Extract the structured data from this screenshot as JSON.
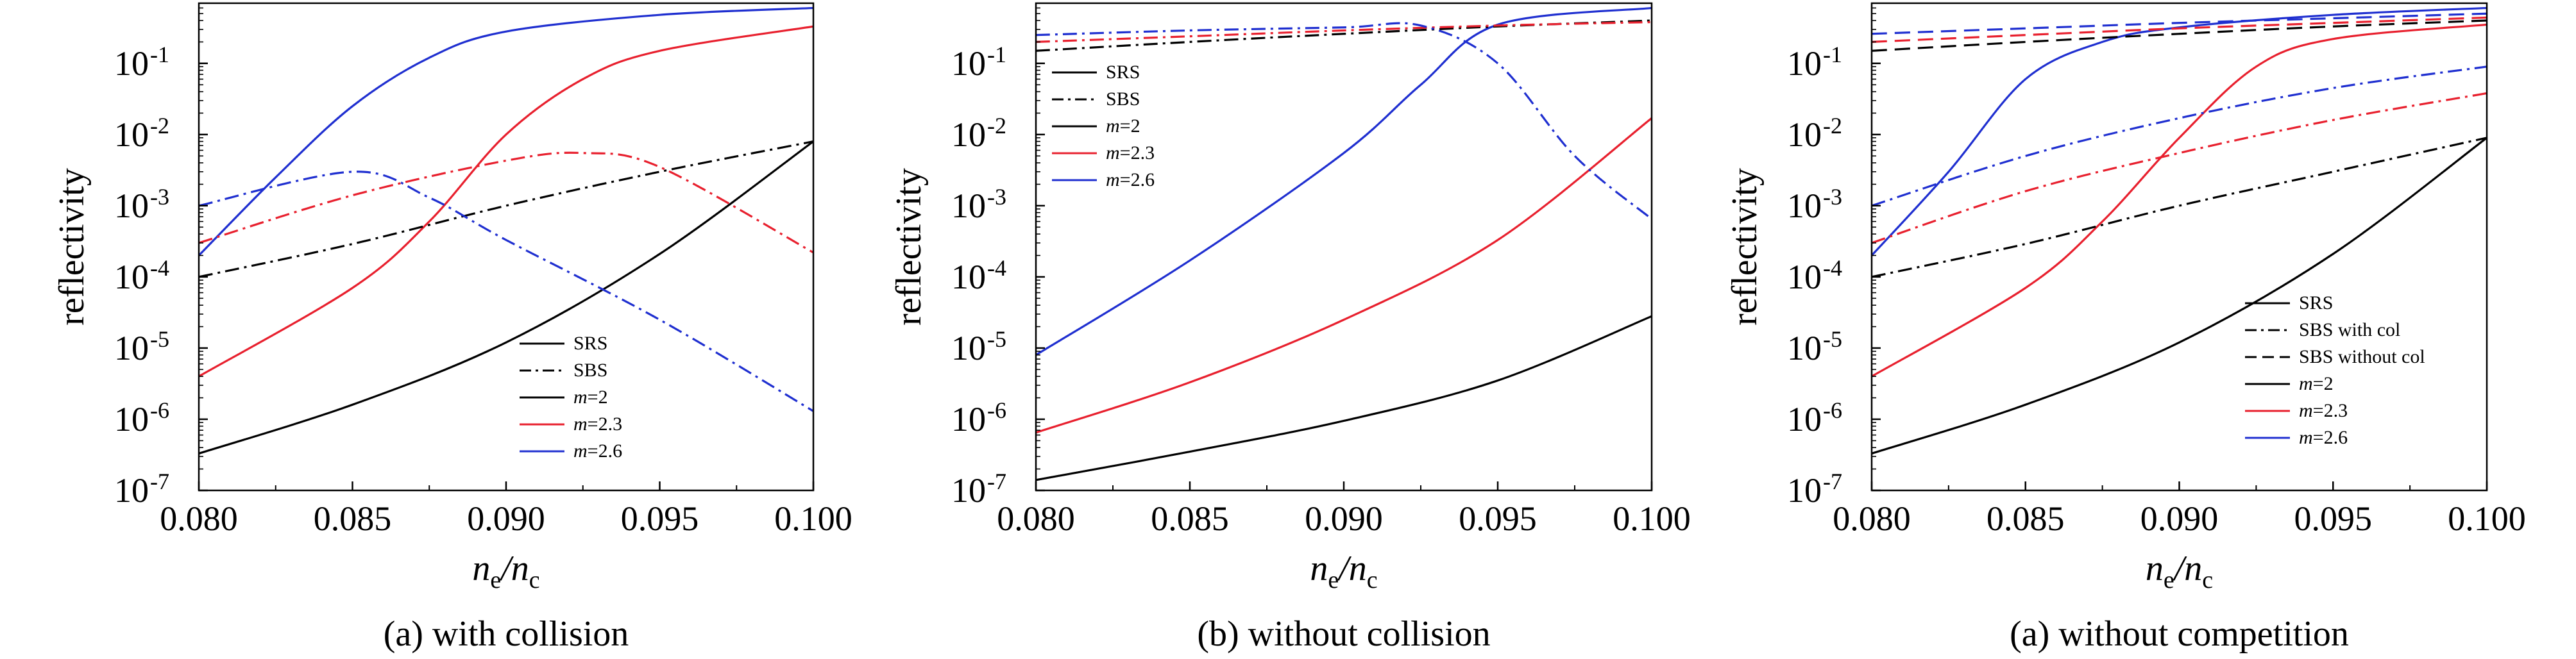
{
  "chart_data": [
    {
      "type": "line",
      "caption": "(a) with collision",
      "xlabel_main": "n",
      "xlabel_sub1": "e",
      "xlabel_slash": "/n",
      "xlabel_sub2": "c",
      "ylabel": "reflectivity",
      "xlim": [
        0.08,
        0.1
      ],
      "ylim": [
        1e-07,
        0.7
      ],
      "yscale": "log",
      "x_ticks": [
        "0.080",
        "0.085",
        "0.090",
        "0.095",
        "0.100"
      ],
      "y_ticks": [
        {
          "base": "10",
          "exp": "-7"
        },
        {
          "base": "10",
          "exp": "-6"
        },
        {
          "base": "10",
          "exp": "-5"
        },
        {
          "base": "10",
          "exp": "-4"
        },
        {
          "base": "10",
          "exp": "-3"
        },
        {
          "base": "10",
          "exp": "-2"
        },
        {
          "base": "10",
          "exp": "-1"
        }
      ],
      "legend_position": "bottom-right",
      "legend": [
        {
          "label": "SRS",
          "color": "#000000",
          "dash": "solid"
        },
        {
          "label": "SBS",
          "color": "#000000",
          "dash": "dashdot"
        },
        {
          "label": "=2",
          "label_prefix": "m",
          "color": "#000000",
          "dash": "solid"
        },
        {
          "label": "=2.3",
          "label_prefix": "m",
          "color": "#e8202e",
          "dash": "solid"
        },
        {
          "label": "=2.6",
          "label_prefix": "m",
          "color": "#1f2fd0",
          "dash": "solid"
        }
      ],
      "series": [
        {
          "process": "SRS",
          "m": "2",
          "color": "#000000",
          "dash": "solid",
          "x": [
            0.08,
            0.085,
            0.09,
            0.095,
            0.1
          ],
          "y": [
            3.3e-07,
            1.6e-06,
            1.2e-05,
            0.00021,
            0.008
          ]
        },
        {
          "process": "SRS",
          "m": "2.3",
          "color": "#e8202e",
          "dash": "solid",
          "x": [
            0.08,
            0.085,
            0.0875,
            0.09,
            0.0925,
            0.095,
            0.1
          ],
          "y": [
            4e-06,
            7e-05,
            0.0006,
            0.01,
            0.06,
            0.15,
            0.33
          ]
        },
        {
          "process": "SRS",
          "m": "2.6",
          "color": "#1f2fd0",
          "dash": "solid",
          "x": [
            0.08,
            0.0825,
            0.085,
            0.0875,
            0.09,
            0.095,
            0.1
          ],
          "y": [
            0.0002,
            0.0025,
            0.025,
            0.12,
            0.28,
            0.48,
            0.6
          ]
        },
        {
          "process": "SBS",
          "m": "2",
          "color": "#000000",
          "dash": "dashdot",
          "x": [
            0.08,
            0.085,
            0.09,
            0.095,
            0.1
          ],
          "y": [
            0.0001,
            0.00029,
            0.001,
            0.003,
            0.008
          ]
        },
        {
          "process": "SBS",
          "m": "2.3",
          "color": "#e8202e",
          "dash": "dashdot",
          "x": [
            0.08,
            0.085,
            0.09,
            0.0925,
            0.095,
            0.1
          ],
          "y": [
            0.0003,
            0.0014,
            0.0043,
            0.0055,
            0.0035,
            0.00022
          ]
        },
        {
          "process": "SBS",
          "m": "2.6",
          "color": "#1f2fd0",
          "dash": "dashdot",
          "x": [
            0.08,
            0.085,
            0.0875,
            0.09,
            0.095,
            0.1
          ],
          "y": [
            0.001,
            0.003,
            0.0013,
            0.00033,
            2.5e-05,
            1.3e-06
          ]
        }
      ]
    },
    {
      "type": "line",
      "caption": "(b) without collision",
      "xlabel_main": "n",
      "xlabel_sub1": "e",
      "xlabel_slash": "/n",
      "xlabel_sub2": "c",
      "ylabel": "reflectivity",
      "xlim": [
        0.08,
        0.1
      ],
      "ylim": [
        1e-07,
        0.7
      ],
      "yscale": "log",
      "x_ticks": [
        "0.080",
        "0.085",
        "0.090",
        "0.095",
        "0.100"
      ],
      "y_ticks": [
        {
          "base": "10",
          "exp": "-7"
        },
        {
          "base": "10",
          "exp": "-6"
        },
        {
          "base": "10",
          "exp": "-5"
        },
        {
          "base": "10",
          "exp": "-4"
        },
        {
          "base": "10",
          "exp": "-3"
        },
        {
          "base": "10",
          "exp": "-2"
        },
        {
          "base": "10",
          "exp": "-1"
        }
      ],
      "legend_position": "top-left",
      "legend": [
        {
          "label": "SRS",
          "color": "#000000",
          "dash": "solid"
        },
        {
          "label": "SBS",
          "color": "#000000",
          "dash": "dashdot"
        },
        {
          "label": "=2",
          "label_prefix": "m",
          "color": "#000000",
          "dash": "solid"
        },
        {
          "label": "=2.3",
          "label_prefix": "m",
          "color": "#e8202e",
          "dash": "solid"
        },
        {
          "label": "=2.6",
          "label_prefix": "m",
          "color": "#1f2fd0",
          "dash": "solid"
        }
      ],
      "series": [
        {
          "process": "SRS",
          "m": "2",
          "color": "#000000",
          "dash": "solid",
          "x": [
            0.08,
            0.085,
            0.09,
            0.095,
            0.1
          ],
          "y": [
            1.4e-07,
            3.5e-07,
            9.5e-07,
            3.5e-06,
            2.8e-05
          ]
        },
        {
          "process": "SRS",
          "m": "2.3",
          "color": "#e8202e",
          "dash": "solid",
          "x": [
            0.08,
            0.085,
            0.09,
            0.095,
            0.1
          ],
          "y": [
            6.5e-07,
            3.3e-06,
            2.5e-05,
            0.00033,
            0.017
          ]
        },
        {
          "process": "SRS",
          "m": "2.6",
          "color": "#1f2fd0",
          "dash": "solid",
          "x": [
            0.08,
            0.085,
            0.09,
            0.0925,
            0.095,
            0.1
          ],
          "y": [
            8e-06,
            0.00017,
            0.0055,
            0.05,
            0.35,
            0.6
          ]
        },
        {
          "process": "SBS",
          "m": "2",
          "color": "#000000",
          "dash": "dashdot",
          "x": [
            0.08,
            0.085,
            0.09,
            0.095,
            0.1
          ],
          "y": [
            0.15,
            0.2,
            0.26,
            0.33,
            0.4
          ]
        },
        {
          "process": "SBS",
          "m": "2.3",
          "color": "#e8202e",
          "dash": "dashdot",
          "x": [
            0.08,
            0.085,
            0.09,
            0.095,
            0.1
          ],
          "y": [
            0.2,
            0.24,
            0.29,
            0.34,
            0.38
          ]
        },
        {
          "process": "SBS",
          "m": "2.6",
          "color": "#1f2fd0",
          "dash": "dashdot",
          "x": [
            0.08,
            0.085,
            0.09,
            0.0925,
            0.095,
            0.0975,
            0.1
          ],
          "y": [
            0.25,
            0.29,
            0.32,
            0.34,
            0.1,
            0.005,
            0.00065
          ]
        }
      ]
    },
    {
      "type": "line",
      "caption": "(a) without competition",
      "xlabel_main": "n",
      "xlabel_sub1": "e",
      "xlabel_slash": "/n",
      "xlabel_sub2": "c",
      "ylabel": "reflectivity",
      "xlim": [
        0.08,
        0.1
      ],
      "ylim": [
        1e-07,
        0.7
      ],
      "yscale": "log",
      "x_ticks": [
        "0.080",
        "0.085",
        "0.090",
        "0.095",
        "0.100"
      ],
      "y_ticks": [
        {
          "base": "10",
          "exp": "-7"
        },
        {
          "base": "10",
          "exp": "-6"
        },
        {
          "base": "10",
          "exp": "-5"
        },
        {
          "base": "10",
          "exp": "-4"
        },
        {
          "base": "10",
          "exp": "-3"
        },
        {
          "base": "10",
          "exp": "-2"
        },
        {
          "base": "10",
          "exp": "-1"
        }
      ],
      "legend_position": "bottom-right",
      "legend": [
        {
          "label": "SRS",
          "color": "#000000",
          "dash": "solid"
        },
        {
          "label": "SBS with col",
          "color": "#000000",
          "dash": "dashdot"
        },
        {
          "label": "SBS without col",
          "color": "#000000",
          "dash": "dashed"
        },
        {
          "label": "=2",
          "label_prefix": "m",
          "color": "#000000",
          "dash": "solid"
        },
        {
          "label": "=2.3",
          "label_prefix": "m",
          "color": "#e8202e",
          "dash": "solid"
        },
        {
          "label": "=2.6",
          "label_prefix": "m",
          "color": "#1f2fd0",
          "dash": "solid"
        }
      ],
      "series": [
        {
          "process": "SRS",
          "m": "2",
          "color": "#000000",
          "dash": "solid",
          "x": [
            0.08,
            0.085,
            0.09,
            0.095,
            0.1
          ],
          "y": [
            3.3e-07,
            1.6e-06,
            1.2e-05,
            0.00021,
            0.009
          ]
        },
        {
          "process": "SRS",
          "m": "2.3",
          "color": "#e8202e",
          "dash": "solid",
          "x": [
            0.08,
            0.085,
            0.0875,
            0.09,
            0.0925,
            0.095,
            0.1
          ],
          "y": [
            4e-06,
            7e-05,
            0.0006,
            0.009,
            0.09,
            0.22,
            0.35
          ]
        },
        {
          "process": "SRS",
          "m": "2.6",
          "color": "#1f2fd0",
          "dash": "solid",
          "x": [
            0.08,
            0.0825,
            0.085,
            0.0875,
            0.09,
            0.095,
            0.1
          ],
          "y": [
            0.0002,
            0.003,
            0.06,
            0.2,
            0.32,
            0.48,
            0.6
          ]
        },
        {
          "process": "SBS with col",
          "m": "2",
          "color": "#000000",
          "dash": "dashdot",
          "x": [
            0.08,
            0.085,
            0.09,
            0.095,
            0.1
          ],
          "y": [
            0.0001,
            0.00029,
            0.001,
            0.003,
            0.009
          ]
        },
        {
          "process": "SBS with col",
          "m": "2.3",
          "color": "#e8202e",
          "dash": "dashdot",
          "x": [
            0.08,
            0.085,
            0.09,
            0.095,
            0.1
          ],
          "y": [
            0.0003,
            0.0016,
            0.0055,
            0.016,
            0.038
          ]
        },
        {
          "process": "SBS with col",
          "m": "2.6",
          "color": "#1f2fd0",
          "dash": "dashdot",
          "x": [
            0.08,
            0.085,
            0.09,
            0.095,
            0.1
          ],
          "y": [
            0.001,
            0.005,
            0.017,
            0.045,
            0.09
          ]
        },
        {
          "process": "SBS without col",
          "m": "2",
          "color": "#000000",
          "dash": "dashed",
          "x": [
            0.08,
            0.085,
            0.09,
            0.095,
            0.1
          ],
          "y": [
            0.15,
            0.2,
            0.26,
            0.33,
            0.4
          ]
        },
        {
          "process": "SBS without col",
          "m": "2.3",
          "color": "#e8202e",
          "dash": "dashed",
          "x": [
            0.08,
            0.085,
            0.09,
            0.095,
            0.1
          ],
          "y": [
            0.2,
            0.25,
            0.31,
            0.37,
            0.44
          ]
        },
        {
          "process": "SBS without col",
          "m": "2.6",
          "color": "#1f2fd0",
          "dash": "dashed",
          "x": [
            0.08,
            0.085,
            0.09,
            0.095,
            0.1
          ],
          "y": [
            0.26,
            0.31,
            0.37,
            0.43,
            0.5
          ]
        }
      ]
    }
  ]
}
